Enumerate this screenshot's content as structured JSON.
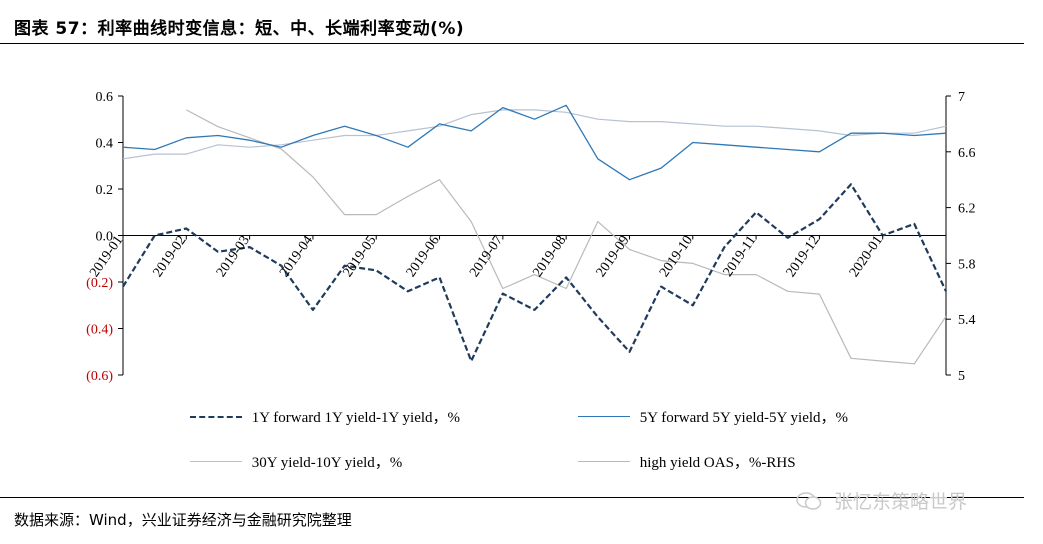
{
  "title": "图表 57：利率曲线时变信息：短、中、长端利率变动(%)",
  "source": "数据来源：Wind，兴业证券经济与金融研究院整理",
  "watermark": "张忆东策略世界",
  "colors": {
    "series_1y": "#1f3b5c",
    "series_5y": "#2f78b7",
    "series_30y": "#b7c1d2",
    "series_oas": "#b9b9b9",
    "negative_tick": "#c00000",
    "axis": "#000000"
  },
  "chart_data": {
    "type": "line",
    "left_axis": {
      "ylim": [
        -0.6,
        0.6
      ],
      "ticks": [
        {
          "value": 0.6,
          "label": "0.6",
          "negative": false
        },
        {
          "value": 0.4,
          "label": "0.4",
          "negative": false
        },
        {
          "value": 0.2,
          "label": "0.2",
          "negative": false
        },
        {
          "value": 0.0,
          "label": "0.0",
          "negative": false
        },
        {
          "value": -0.2,
          "label": "(0.2)",
          "negative": true
        },
        {
          "value": -0.4,
          "label": "(0.4)",
          "negative": true
        },
        {
          "value": -0.6,
          "label": "(0.6)",
          "negative": true
        }
      ]
    },
    "right_axis": {
      "ylim": [
        5,
        7
      ],
      "ticks": [
        {
          "value": 7,
          "label": "7"
        },
        {
          "value": 6.6,
          "label": "6.6"
        },
        {
          "value": 6.2,
          "label": "6.2"
        },
        {
          "value": 5.8,
          "label": "5.8"
        },
        {
          "value": 5.4,
          "label": "5.4"
        },
        {
          "value": 5,
          "label": "5"
        }
      ]
    },
    "x_ticks": [
      "2019-01",
      "2019-02",
      "2019-03",
      "2019-04",
      "2019-05",
      "2019-06",
      "2019-07",
      "2019-08",
      "2019-09",
      "2019-10",
      "2019-11",
      "2019-12",
      "2020-01"
    ],
    "x": [
      "2019-01",
      "2019-01-15",
      "2019-02",
      "2019-02-15",
      "2019-03",
      "2019-03-15",
      "2019-04",
      "2019-04-15",
      "2019-05",
      "2019-05-15",
      "2019-06",
      "2019-06-15",
      "2019-07",
      "2019-07-15",
      "2019-08",
      "2019-08-15",
      "2019-09",
      "2019-09-15",
      "2019-10",
      "2019-10-15",
      "2019-11",
      "2019-11-15",
      "2019-12",
      "2019-12-15",
      "2020-01",
      "2020-01-15",
      "2020-02"
    ],
    "series": [
      {
        "name": "1Y forward 1Y yield-1Y yield，%",
        "axis": "left",
        "style": "dashed",
        "values": [
          -0.22,
          0.0,
          0.03,
          -0.07,
          -0.05,
          -0.13,
          -0.32,
          -0.13,
          -0.15,
          -0.24,
          -0.18,
          -0.54,
          -0.25,
          -0.32,
          -0.18,
          -0.35,
          -0.5,
          -0.22,
          -0.3,
          -0.05,
          0.1,
          -0.01,
          0.07,
          0.22,
          0.0,
          0.05,
          -0.24
        ]
      },
      {
        "name": "5Y forward 5Y yield-5Y yield，%",
        "axis": "left",
        "style": "solid",
        "values": [
          0.38,
          0.37,
          0.42,
          0.43,
          0.41,
          0.38,
          0.43,
          0.47,
          0.43,
          0.38,
          0.48,
          0.45,
          0.55,
          0.5,
          0.56,
          0.33,
          0.24,
          0.29,
          0.4,
          0.39,
          0.38,
          0.37,
          0.36,
          0.44,
          0.44,
          0.43,
          0.44
        ]
      },
      {
        "name": "30Y yield-10Y yield，%",
        "axis": "left",
        "style": "solid",
        "values": [
          0.33,
          0.35,
          0.35,
          0.39,
          0.38,
          0.39,
          0.41,
          0.43,
          0.43,
          0.45,
          0.47,
          0.52,
          0.54,
          0.54,
          0.53,
          0.5,
          0.49,
          0.49,
          0.48,
          0.47,
          0.47,
          0.46,
          0.45,
          0.43,
          0.44,
          0.44,
          0.47
        ]
      },
      {
        "name": "high yield OAS，%-RHS",
        "axis": "right",
        "style": "solid",
        "values": [
          null,
          null,
          6.9,
          6.78,
          6.7,
          6.62,
          6.42,
          6.15,
          6.15,
          6.28,
          6.4,
          6.1,
          5.62,
          5.72,
          5.62,
          6.1,
          5.9,
          5.82,
          5.8,
          5.72,
          5.72,
          5.6,
          5.58,
          5.12,
          5.1,
          5.08,
          5.42
        ]
      }
    ]
  }
}
